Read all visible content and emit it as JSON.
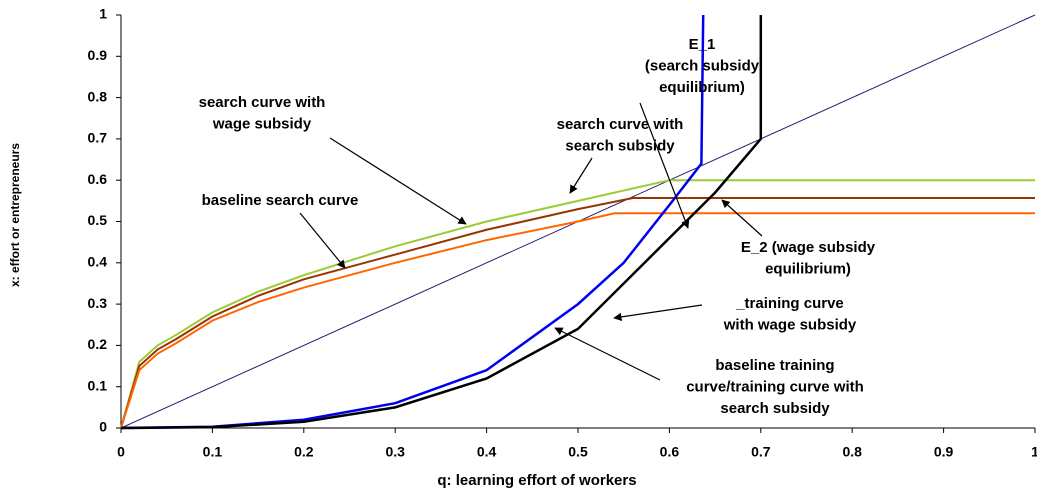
{
  "chart_data": {
    "type": "line",
    "xlabel": "q: learning effort of workers",
    "ylabel": "x: effort or entrepreneurs",
    "xlim": [
      0,
      1
    ],
    "ylim": [
      0,
      1
    ],
    "xticks": [
      0,
      0.1,
      0.2,
      0.3,
      0.4,
      0.5,
      0.6,
      0.7,
      0.8,
      0.9,
      1
    ],
    "yticks": [
      0,
      0.1,
      0.2,
      0.3,
      0.4,
      0.5,
      0.6,
      0.7,
      0.8,
      0.9,
      1
    ],
    "series": [
      {
        "color": "#2e1a6e",
        "width": 1,
        "x": [
          0,
          1
        ],
        "values": [
          0,
          1
        ]
      },
      {
        "color": "#99cc33",
        "width": 2,
        "x": [
          0,
          0.02,
          0.04,
          0.06,
          0.1,
          0.15,
          0.2,
          0.3,
          0.4,
          0.5,
          0.6,
          1
        ],
        "values": [
          0,
          0.16,
          0.2,
          0.225,
          0.28,
          0.33,
          0.37,
          0.44,
          0.5,
          0.55,
          0.6,
          0.6
        ]
      },
      {
        "color": "#993300",
        "width": 2,
        "x": [
          0,
          0.02,
          0.04,
          0.06,
          0.1,
          0.15,
          0.2,
          0.3,
          0.4,
          0.5,
          0.56,
          1
        ],
        "values": [
          0,
          0.15,
          0.19,
          0.215,
          0.27,
          0.32,
          0.36,
          0.42,
          0.48,
          0.53,
          0.557,
          0.557
        ]
      },
      {
        "color": "#ff6600",
        "width": 2,
        "x": [
          0,
          0.02,
          0.04,
          0.06,
          0.1,
          0.15,
          0.2,
          0.3,
          0.4,
          0.5,
          0.54,
          1
        ],
        "values": [
          0,
          0.14,
          0.18,
          0.205,
          0.26,
          0.305,
          0.34,
          0.4,
          0.455,
          0.5,
          0.52,
          0.52
        ]
      },
      {
        "color": "#0000ee",
        "width": 2.5,
        "x": [
          0,
          0.1,
          0.2,
          0.3,
          0.4,
          0.5,
          0.55,
          0.6,
          0.635,
          0.637
        ],
        "values": [
          0,
          0.003,
          0.02,
          0.06,
          0.14,
          0.3,
          0.4,
          0.54,
          0.64,
          1
        ]
      },
      {
        "color": "#000000",
        "width": 2.5,
        "x": [
          0,
          0.1,
          0.2,
          0.3,
          0.4,
          0.5,
          0.6,
          0.65,
          0.7,
          0.7
        ],
        "values": [
          0,
          0.002,
          0.015,
          0.05,
          0.12,
          0.24,
          0.46,
          0.57,
          0.7,
          1
        ]
      }
    ],
    "annotations": [
      [
        "E_1",
        "(search subsidy",
        "equilibrium)"
      ],
      [
        "search curve with",
        "search subsidy"
      ],
      [
        "search curve with",
        "wage subsidy"
      ],
      [
        "baseline search curve"
      ],
      [
        "E_2 (wage subsidy",
        "equilibrium)"
      ],
      [
        "_training curve",
        "with wage subsidy"
      ],
      [
        "baseline training",
        "curve/training curve with",
        "search subsidy"
      ]
    ]
  }
}
